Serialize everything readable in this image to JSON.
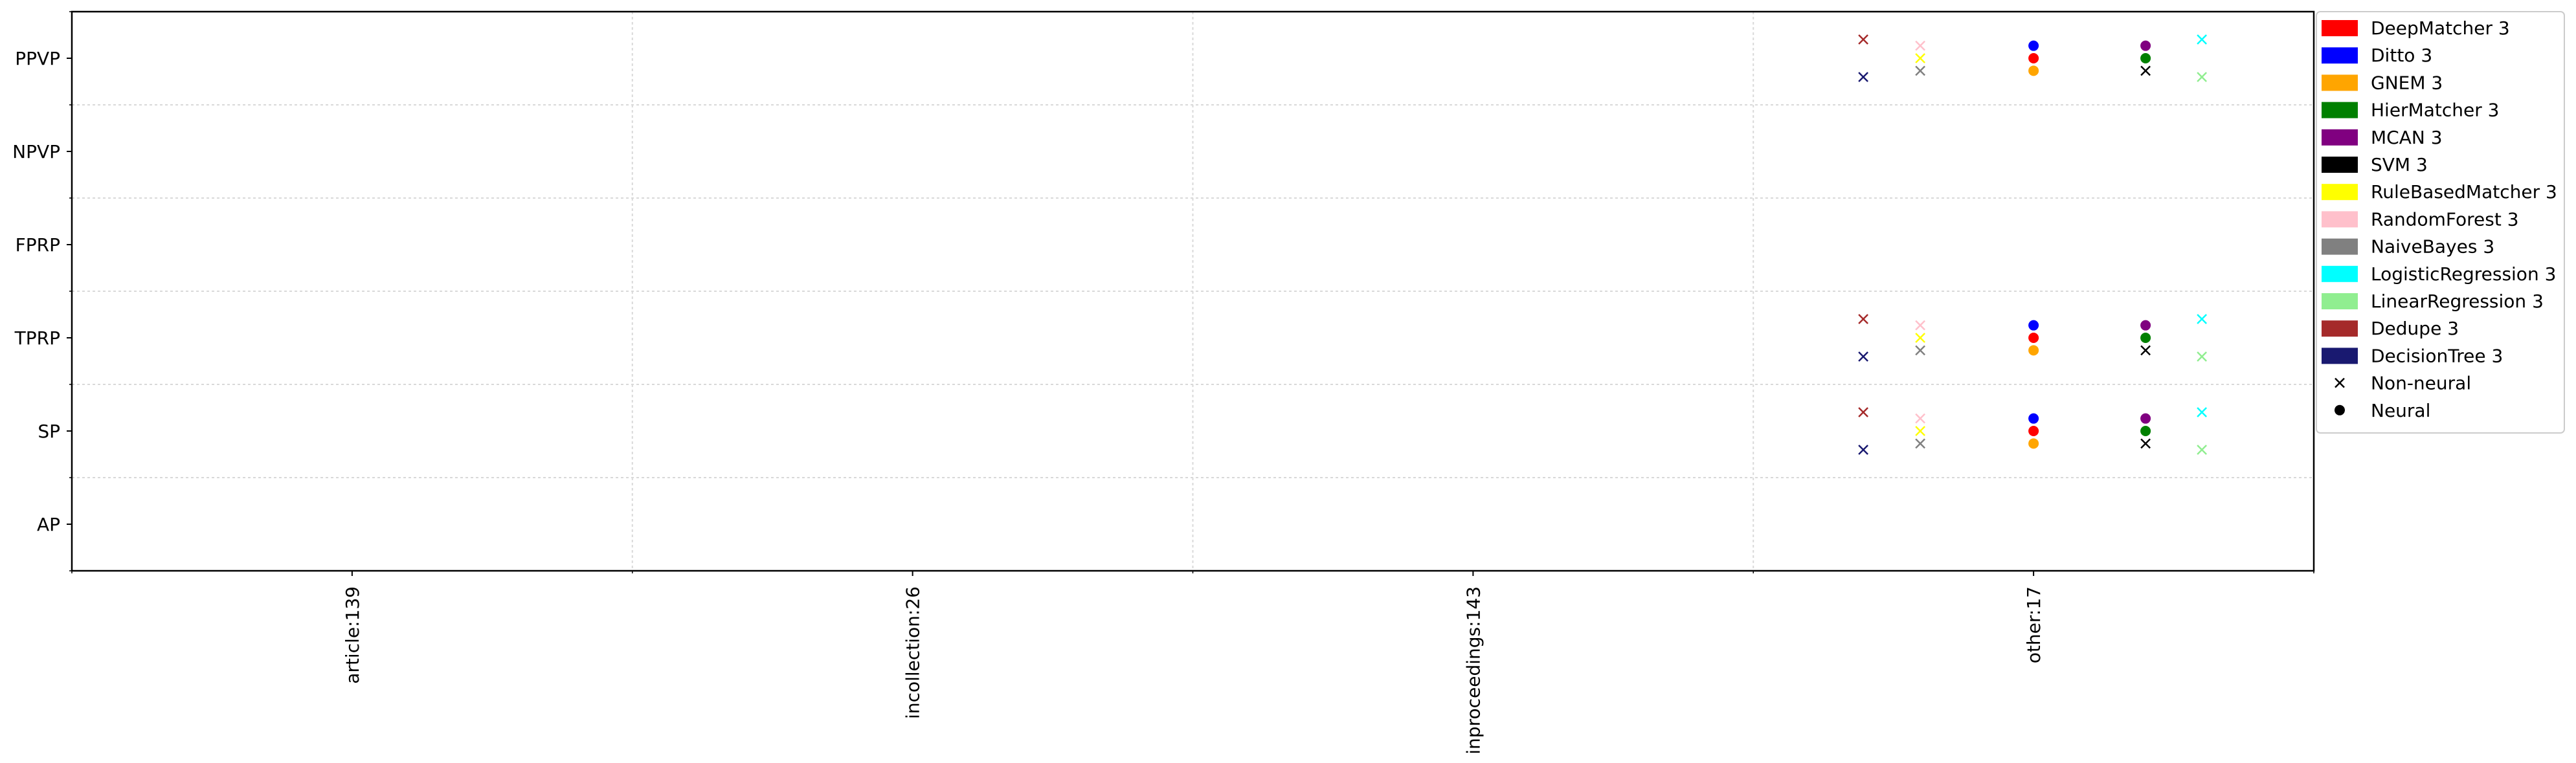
{
  "chart_data": {
    "type": "scatter",
    "title": "",
    "xlabel": "",
    "ylabel": "",
    "x_categories": [
      "article:139",
      "incollection:26",
      "inproceedings:143",
      "other:17"
    ],
    "y_categories": [
      "PPVP",
      "NPVP",
      "FPRP",
      "TPRP",
      "SP",
      "AP"
    ],
    "grid": true,
    "legend_position": "right",
    "series": [
      {
        "name": "DeepMatcher 3",
        "color": "#ff0000",
        "marker": "dot",
        "points": [
          {
            "x": "other:17",
            "y": "PPVP",
            "offset": 0.0
          },
          {
            "x": "other:17",
            "y": "TPRP",
            "offset": 0.0
          },
          {
            "x": "other:17",
            "y": "SP",
            "offset": 0.0
          }
        ]
      },
      {
        "name": "Ditto 3",
        "color": "#0000ff",
        "marker": "dot",
        "points": [
          {
            "x": "other:17",
            "y": "PPVP",
            "offset": 0.2
          },
          {
            "x": "other:17",
            "y": "TPRP",
            "offset": 0.2
          },
          {
            "x": "other:17",
            "y": "SP",
            "offset": 0.2
          }
        ]
      },
      {
        "name": "GNEM 3",
        "color": "#ffa500",
        "marker": "dot",
        "points": [
          {
            "x": "other:17",
            "y": "PPVP",
            "offset": -0.2
          },
          {
            "x": "other:17",
            "y": "TPRP",
            "offset": -0.2
          },
          {
            "x": "other:17",
            "y": "SP",
            "offset": -0.2
          }
        ]
      },
      {
        "name": "HierMatcher 3",
        "color": "#008000",
        "marker": "dot",
        "points": [
          {
            "x": "other:17",
            "y": "PPVP",
            "offset": 0.0
          },
          {
            "x": "other:17",
            "y": "TPRP",
            "offset": 0.0
          },
          {
            "x": "other:17",
            "y": "SP",
            "offset": 0.0
          }
        ]
      },
      {
        "name": "MCAN 3",
        "color": "#800080",
        "marker": "dot",
        "points": [
          {
            "x": "other:17",
            "y": "PPVP",
            "offset": 0.2
          },
          {
            "x": "other:17",
            "y": "TPRP",
            "offset": 0.2
          },
          {
            "x": "other:17",
            "y": "SP",
            "offset": 0.2
          }
        ]
      },
      {
        "name": "SVM 3",
        "color": "#000000",
        "marker": "x",
        "points": [
          {
            "x": "other:17",
            "y": "PPVP",
            "offset": -0.2
          },
          {
            "x": "other:17",
            "y": "TPRP",
            "offset": -0.2
          },
          {
            "x": "other:17",
            "y": "SP",
            "offset": -0.2
          }
        ]
      },
      {
        "name": "RuleBasedMatcher 3",
        "color": "#ffff00",
        "marker": "x",
        "points": [
          {
            "x": "other:17",
            "y": "PPVP",
            "offset": 0.0
          },
          {
            "x": "other:17",
            "y": "TPRP",
            "offset": 0.0
          },
          {
            "x": "other:17",
            "y": "SP",
            "offset": 0.0
          }
        ]
      },
      {
        "name": "RandomForest 3",
        "color": "#ffc0cb",
        "marker": "x",
        "points": [
          {
            "x": "other:17",
            "y": "PPVP",
            "offset": 0.2
          },
          {
            "x": "other:17",
            "y": "TPRP",
            "offset": 0.2
          },
          {
            "x": "other:17",
            "y": "SP",
            "offset": 0.2
          }
        ]
      },
      {
        "name": "NaiveBayes 3",
        "color": "#808080",
        "marker": "x",
        "points": [
          {
            "x": "other:17",
            "y": "PPVP",
            "offset": -0.2
          },
          {
            "x": "other:17",
            "y": "TPRP",
            "offset": -0.2
          },
          {
            "x": "other:17",
            "y": "SP",
            "offset": -0.2
          }
        ]
      },
      {
        "name": "LogisticRegression 3",
        "color": "#00ffff",
        "marker": "x",
        "points": [
          {
            "x": "other:17",
            "y": "PPVP",
            "offset": 0.3
          },
          {
            "x": "other:17",
            "y": "TPRP",
            "offset": 0.3
          },
          {
            "x": "other:17",
            "y": "SP",
            "offset": 0.3
          }
        ]
      },
      {
        "name": "LinearRegression 3",
        "color": "#90ee90",
        "marker": "x",
        "points": [
          {
            "x": "other:17",
            "y": "PPVP",
            "offset": -0.3
          },
          {
            "x": "other:17",
            "y": "TPRP",
            "offset": -0.3
          },
          {
            "x": "other:17",
            "y": "SP",
            "offset": -0.3
          }
        ]
      },
      {
        "name": "Dedupe 3",
        "color": "#a52a2a",
        "marker": "x",
        "points": [
          {
            "x": "other:17",
            "y": "PPVP",
            "offset": 0.3
          },
          {
            "x": "other:17",
            "y": "TPRP",
            "offset": 0.3
          },
          {
            "x": "other:17",
            "y": "SP",
            "offset": 0.3
          }
        ]
      },
      {
        "name": "DecisionTree 3",
        "color": "#191970",
        "marker": "x",
        "points": [
          {
            "x": "other:17",
            "y": "PPVP",
            "offset": -0.3
          },
          {
            "x": "other:17",
            "y": "TPRP",
            "offset": -0.3
          },
          {
            "x": "other:17",
            "y": "SP",
            "offset": -0.3
          }
        ]
      }
    ],
    "marker_legend": [
      {
        "label": "Non-neural",
        "marker": "x"
      },
      {
        "label": "Neural",
        "marker": "dot"
      }
    ]
  }
}
